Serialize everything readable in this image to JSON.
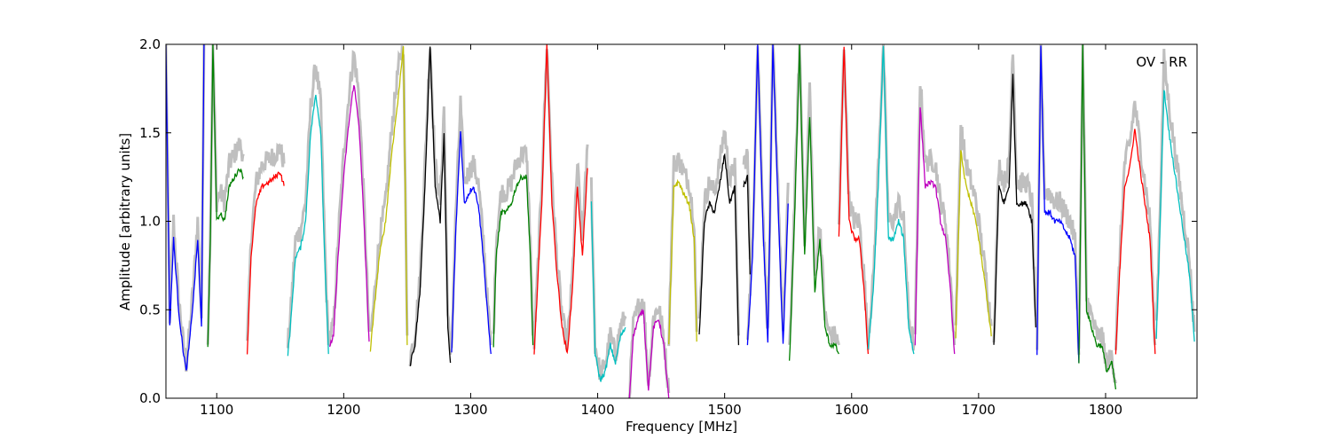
{
  "chart_data": {
    "type": "line",
    "annotation": "OV - RR",
    "xlabel": "Frequency [MHz]",
    "ylabel": "Amplitude [arbitrary units]",
    "xlim": [
      1060,
      1872
    ],
    "ylim": [
      0.0,
      2.0
    ],
    "xticks": [
      1100,
      1200,
      1300,
      1400,
      1500,
      1600,
      1700,
      1800
    ],
    "yticks": [
      0.0,
      0.5,
      1.0,
      1.5,
      2.0
    ],
    "xtick_labels": [
      "1100",
      "1200",
      "1300",
      "1400",
      "1500",
      "1600",
      "1700",
      "1800"
    ],
    "ytick_labels": [
      "0.0",
      "0.5",
      "1.0",
      "1.5",
      "2.0"
    ],
    "grid": false,
    "colors": {
      "background_trace": "#bfbfbf",
      "blue": "#0000ff",
      "green": "#008000",
      "red": "#ff0000",
      "cyan": "#00bfbf",
      "magenta": "#bf00bf",
      "olive": "#bfbf00",
      "black": "#000000"
    },
    "series": [
      {
        "color": "blue",
        "x": [
          1060,
          1063,
          1066,
          1070,
          1073,
          1076,
          1079,
          1082,
          1085,
          1088,
          1090
        ],
        "y": [
          2.0,
          0.4,
          0.9,
          0.5,
          0.3,
          0.15,
          0.35,
          0.6,
          0.9,
          0.4,
          2.0
        ]
      },
      {
        "color": "green",
        "x": [
          1093,
          1095,
          1097,
          1100,
          1103,
          1106,
          1110,
          1114,
          1118,
          1121
        ],
        "y": [
          0.28,
          0.9,
          2.0,
          1.0,
          1.05,
          1.0,
          1.2,
          1.25,
          1.3,
          1.25
        ]
      },
      {
        "color": "red",
        "x": [
          1124,
          1127,
          1131,
          1136,
          1141,
          1146,
          1150,
          1153
        ],
        "y": [
          0.25,
          0.8,
          1.1,
          1.2,
          1.22,
          1.25,
          1.28,
          1.2
        ]
      },
      {
        "color": "cyan",
        "x": [
          1156,
          1158,
          1162,
          1166,
          1170,
          1174,
          1178,
          1182,
          1185,
          1188
        ],
        "y": [
          0.25,
          0.4,
          0.8,
          0.85,
          1.0,
          1.5,
          1.72,
          1.5,
          0.8,
          0.25
        ]
      },
      {
        "color": "magenta",
        "x": [
          1189,
          1192,
          1196,
          1200,
          1204,
          1208,
          1212,
          1216,
          1220
        ],
        "y": [
          0.3,
          0.35,
          0.85,
          1.25,
          1.55,
          1.78,
          1.55,
          1.0,
          0.32
        ]
      },
      {
        "color": "olive",
        "x": [
          1221,
          1224,
          1228,
          1233,
          1238,
          1243,
          1247,
          1250
        ],
        "y": [
          0.27,
          0.5,
          0.8,
          1.0,
          1.4,
          1.7,
          2.0,
          0.3
        ]
      },
      {
        "color": "black",
        "x": [
          1252,
          1256,
          1260,
          1264,
          1268,
          1272,
          1276,
          1279,
          1282,
          1284
        ],
        "y": [
          0.18,
          0.3,
          0.6,
          1.2,
          2.0,
          1.2,
          1.0,
          1.5,
          0.4,
          0.2
        ]
      },
      {
        "color": "blue",
        "x": [
          1285,
          1288,
          1292,
          1295,
          1298,
          1302,
          1306,
          1310,
          1313,
          1316
        ],
        "y": [
          0.25,
          0.9,
          1.52,
          1.1,
          1.15,
          1.2,
          1.1,
          0.8,
          0.5,
          0.25
        ]
      },
      {
        "color": "green",
        "x": [
          1318,
          1320,
          1324,
          1328,
          1332,
          1336,
          1340,
          1344,
          1347,
          1349
        ],
        "y": [
          0.3,
          0.8,
          1.05,
          1.05,
          1.1,
          1.2,
          1.25,
          1.25,
          0.8,
          0.3
        ]
      },
      {
        "color": "red",
        "x": [
          1350,
          1356,
          1360,
          1364,
          1368,
          1372,
          1376,
          1380,
          1384,
          1388,
          1392
        ],
        "y": [
          0.26,
          1.1,
          2.0,
          1.1,
          0.7,
          0.4,
          0.25,
          0.6,
          1.2,
          0.8,
          1.3
        ]
      },
      {
        "color": "cyan",
        "x": [
          1395,
          1398,
          1402,
          1406,
          1410,
          1414,
          1418,
          1422
        ],
        "y": [
          1.1,
          0.25,
          0.1,
          0.15,
          0.3,
          0.2,
          0.35,
          0.4
        ]
      },
      {
        "color": "magenta",
        "x": [
          1425,
          1428,
          1432,
          1436,
          1440,
          1444,
          1448,
          1452,
          1456
        ],
        "y": [
          0.0,
          0.35,
          0.45,
          0.5,
          0.05,
          0.4,
          0.45,
          0.3,
          0.0
        ]
      },
      {
        "color": "olive",
        "x": [
          1456,
          1460,
          1464,
          1468,
          1472,
          1476,
          1478
        ],
        "y": [
          0.3,
          1.2,
          1.22,
          1.15,
          1.1,
          0.9,
          0.32
        ]
      },
      {
        "color": "black",
        "x": [
          1480,
          1484,
          1488,
          1492,
          1496,
          1500,
          1504,
          1508,
          1511
        ],
        "y": [
          0.35,
          1.0,
          1.1,
          1.05,
          1.2,
          1.38,
          1.1,
          1.2,
          0.3
        ]
      },
      {
        "color": "black",
        "x": [
          1515,
          1518,
          1520
        ],
        "y": [
          1.2,
          1.25,
          0.7
        ]
      },
      {
        "color": "blue",
        "x": [
          1518,
          1522,
          1526,
          1530,
          1534,
          1538,
          1542,
          1546,
          1550
        ],
        "y": [
          0.3,
          0.8,
          2.0,
          1.0,
          0.3,
          2.0,
          1.1,
          0.3,
          1.1
        ]
      },
      {
        "color": "green",
        "x": [
          1551,
          1555,
          1559,
          1563,
          1567,
          1571,
          1575,
          1579,
          1583,
          1587,
          1590
        ],
        "y": [
          0.2,
          1.0,
          2.0,
          0.8,
          1.6,
          0.6,
          0.9,
          0.4,
          0.3,
          0.3,
          0.25
        ]
      },
      {
        "color": "red",
        "x": [
          1590,
          1594,
          1598,
          1602,
          1606,
          1610,
          1613
        ],
        "y": [
          0.9,
          2.0,
          1.0,
          0.9,
          0.9,
          0.6,
          0.25
        ]
      },
      {
        "color": "cyan",
        "x": [
          1613,
          1617,
          1621,
          1625,
          1629,
          1633,
          1637,
          1641,
          1645,
          1649
        ],
        "y": [
          0.28,
          0.6,
          1.2,
          2.0,
          0.9,
          0.9,
          1.0,
          0.9,
          0.4,
          0.25
        ]
      },
      {
        "color": "magenta",
        "x": [
          1650,
          1654,
          1658,
          1662,
          1666,
          1670,
          1674,
          1678,
          1681
        ],
        "y": [
          0.3,
          1.65,
          1.2,
          1.22,
          1.2,
          1.0,
          0.9,
          0.6,
          0.25
        ]
      },
      {
        "color": "olive",
        "x": [
          1682,
          1686,
          1690,
          1694,
          1698,
          1702,
          1706,
          1710
        ],
        "y": [
          0.35,
          1.4,
          1.2,
          1.1,
          1.0,
          0.8,
          0.6,
          0.35
        ]
      },
      {
        "color": "black",
        "x": [
          1712,
          1716,
          1720,
          1724,
          1727,
          1730,
          1734,
          1738,
          1742,
          1745
        ],
        "y": [
          0.3,
          1.2,
          1.1,
          1.2,
          1.83,
          1.1,
          1.1,
          1.1,
          1.0,
          0.4
        ]
      },
      {
        "color": "blue",
        "x": [
          1746,
          1749,
          1752,
          1756,
          1760,
          1764,
          1768,
          1772,
          1776,
          1779
        ],
        "y": [
          0.25,
          2.0,
          1.05,
          1.05,
          1.0,
          1.0,
          0.95,
          0.9,
          0.8,
          0.2
        ]
      },
      {
        "color": "green",
        "x": [
          1779,
          1782,
          1785,
          1789,
          1793,
          1797,
          1801,
          1805,
          1808
        ],
        "y": [
          0.2,
          2.0,
          0.5,
          0.4,
          0.3,
          0.3,
          0.15,
          0.2,
          0.05
        ]
      },
      {
        "color": "red",
        "x": [
          1808,
          1811,
          1815,
          1819,
          1823,
          1827,
          1831,
          1835,
          1839
        ],
        "y": [
          0.25,
          0.7,
          1.2,
          1.3,
          1.52,
          1.3,
          1.1,
          0.9,
          0.25
        ]
      },
      {
        "color": "cyan",
        "x": [
          1840,
          1843,
          1846,
          1850,
          1854,
          1858,
          1862,
          1866,
          1870
        ],
        "y": [
          0.35,
          1.0,
          1.75,
          1.5,
          1.3,
          1.1,
          0.9,
          0.7,
          0.32
        ]
      }
    ]
  }
}
